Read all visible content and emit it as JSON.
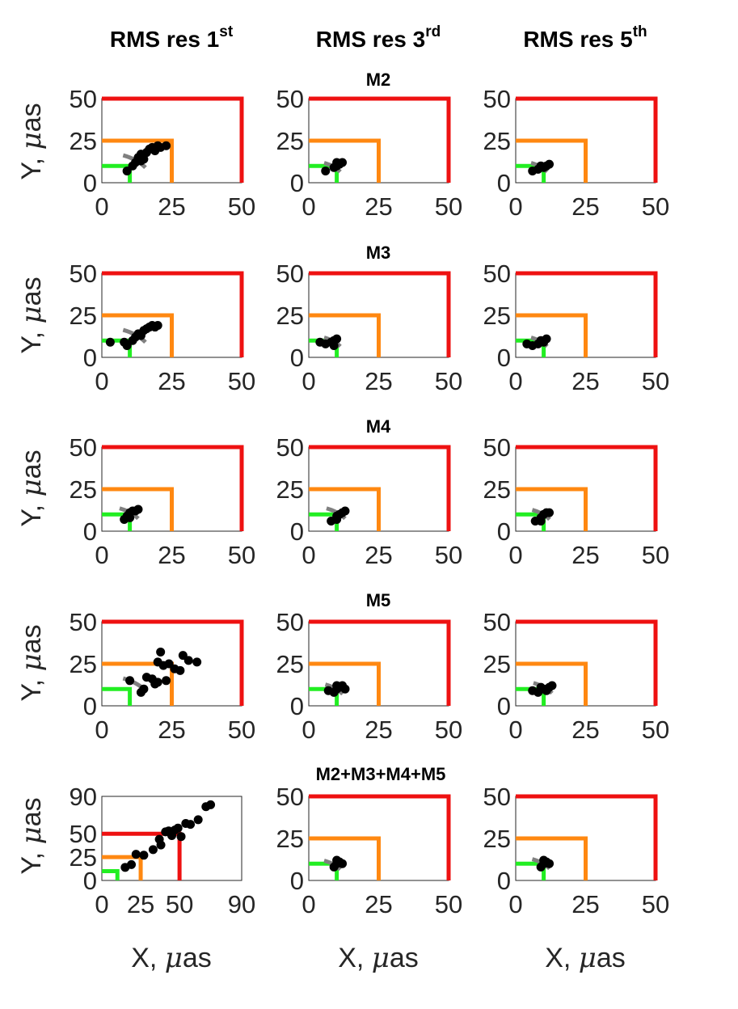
{
  "column_titles": [
    {
      "base": "RMS res 1",
      "sup": "st"
    },
    {
      "base": "RMS res 3",
      "sup": "rd"
    },
    {
      "base": "RMS res 5",
      "sup": "th"
    }
  ],
  "row_titles": [
    "M2",
    "M3",
    "M4",
    "M5",
    "M2+M3+M4+M5"
  ],
  "y_label": {
    "prefix": "Y, ",
    "mu": "μ",
    "suffix": "as"
  },
  "x_label": {
    "prefix": "X, ",
    "mu": "μ",
    "suffix": "as"
  },
  "colors": {
    "red": "#ee1111",
    "orange": "#ff8811",
    "green": "#22ee22",
    "points": "#000000",
    "arc": "#808080"
  },
  "chart_data": [
    {
      "type": "scatter",
      "title": "M2",
      "column": "RMS res 1st",
      "xlim": [
        0,
        50
      ],
      "ylim": [
        0,
        50
      ],
      "xticks": [
        "0",
        "25",
        "50"
      ],
      "yticks": [
        "0",
        "25",
        "50"
      ],
      "thresholds": [
        10,
        25,
        50
      ],
      "points": [
        [
          9,
          7
        ],
        [
          12,
          12
        ],
        [
          13,
          15
        ],
        [
          14,
          17
        ],
        [
          15,
          14
        ],
        [
          16,
          18
        ],
        [
          17,
          20
        ],
        [
          18,
          21
        ],
        [
          19,
          19
        ],
        [
          20,
          22
        ],
        [
          21,
          21
        ],
        [
          23,
          22
        ],
        [
          11,
          10
        ],
        [
          14,
          13
        ]
      ],
      "arc": {
        "radius": 18,
        "angles": [
          30,
          65
        ]
      }
    },
    {
      "type": "scatter",
      "title": "",
      "column": "RMS res 3rd",
      "xlim": [
        0,
        50
      ],
      "ylim": [
        0,
        50
      ],
      "xticks": [
        "0",
        "25",
        "50"
      ],
      "yticks": [
        "0",
        "25",
        "50"
      ],
      "thresholds": [
        10,
        25,
        50
      ],
      "points": [
        [
          6,
          7
        ],
        [
          9,
          9
        ],
        [
          10,
          10
        ],
        [
          11,
          11
        ],
        [
          12,
          12
        ],
        [
          10,
          12
        ]
      ],
      "arc": {
        "radius": 13,
        "angles": [
          30,
          65
        ]
      }
    },
    {
      "type": "scatter",
      "title": "",
      "column": "RMS res 5th",
      "xlim": [
        0,
        50
      ],
      "ylim": [
        0,
        50
      ],
      "xticks": [
        "0",
        "25",
        "50"
      ],
      "yticks": [
        "0",
        "25",
        "50"
      ],
      "thresholds": [
        10,
        25,
        50
      ],
      "points": [
        [
          6,
          7
        ],
        [
          8,
          8
        ],
        [
          10,
          9
        ],
        [
          11,
          10
        ],
        [
          12,
          11
        ],
        [
          9,
          10
        ]
      ],
      "arc": {
        "radius": 13,
        "angles": [
          30,
          65
        ]
      }
    },
    {
      "type": "scatter",
      "title": "M3",
      "column": "RMS res 1st",
      "xlim": [
        0,
        50
      ],
      "ylim": [
        0,
        50
      ],
      "xticks": [
        "0",
        "25",
        "50"
      ],
      "yticks": [
        "0",
        "25",
        "50"
      ],
      "thresholds": [
        10,
        25,
        50
      ],
      "points": [
        [
          3,
          9
        ],
        [
          8,
          9
        ],
        [
          9,
          7
        ],
        [
          11,
          10
        ],
        [
          12,
          12
        ],
        [
          13,
          14
        ],
        [
          14,
          13
        ],
        [
          15,
          16
        ],
        [
          16,
          17
        ],
        [
          17,
          18
        ],
        [
          18,
          19
        ],
        [
          19,
          18
        ],
        [
          20,
          19
        ]
      ],
      "arc": {
        "radius": 18,
        "angles": [
          30,
          65
        ]
      }
    },
    {
      "type": "scatter",
      "title": "",
      "column": "RMS res 3rd",
      "xlim": [
        0,
        50
      ],
      "ylim": [
        0,
        50
      ],
      "xticks": [
        "0",
        "25",
        "50"
      ],
      "yticks": [
        "0",
        "25",
        "50"
      ],
      "thresholds": [
        10,
        25,
        50
      ],
      "points": [
        [
          4,
          9
        ],
        [
          6,
          8
        ],
        [
          8,
          9
        ],
        [
          9,
          10
        ],
        [
          10,
          11
        ],
        [
          9,
          7
        ]
      ],
      "arc": {
        "radius": 13,
        "angles": [
          30,
          65
        ]
      }
    },
    {
      "type": "scatter",
      "title": "",
      "column": "RMS res 5th",
      "xlim": [
        0,
        50
      ],
      "ylim": [
        0,
        50
      ],
      "xticks": [
        "0",
        "25",
        "50"
      ],
      "yticks": [
        "0",
        "25",
        "50"
      ],
      "thresholds": [
        10,
        25,
        50
      ],
      "points": [
        [
          4,
          8
        ],
        [
          6,
          7
        ],
        [
          8,
          8
        ],
        [
          9,
          10
        ],
        [
          10,
          9
        ],
        [
          11,
          11
        ]
      ],
      "arc": {
        "radius": 13,
        "angles": [
          30,
          65
        ]
      }
    },
    {
      "type": "scatter",
      "title": "M4",
      "column": "RMS res 1st",
      "xlim": [
        0,
        50
      ],
      "ylim": [
        0,
        50
      ],
      "xticks": [
        "0",
        "25",
        "50"
      ],
      "yticks": [
        "0",
        "25",
        "50"
      ],
      "thresholds": [
        10,
        25,
        50
      ],
      "points": [
        [
          8,
          7
        ],
        [
          9,
          9
        ],
        [
          10,
          11
        ],
        [
          11,
          12
        ],
        [
          12,
          12
        ],
        [
          13,
          13
        ],
        [
          10,
          8
        ]
      ],
      "arc": {
        "radius": 15,
        "angles": [
          30,
          65
        ]
      }
    },
    {
      "type": "scatter",
      "title": "",
      "column": "RMS res 3rd",
      "xlim": [
        0,
        50
      ],
      "ylim": [
        0,
        50
      ],
      "xticks": [
        "0",
        "25",
        "50"
      ],
      "yticks": [
        "0",
        "25",
        "50"
      ],
      "thresholds": [
        10,
        25,
        50
      ],
      "points": [
        [
          8,
          6
        ],
        [
          10,
          9
        ],
        [
          11,
          10
        ],
        [
          12,
          11
        ],
        [
          13,
          12
        ],
        [
          10,
          7
        ]
      ],
      "arc": {
        "radius": 15,
        "angles": [
          30,
          65
        ]
      }
    },
    {
      "type": "scatter",
      "title": "",
      "column": "RMS res 5th",
      "xlim": [
        0,
        50
      ],
      "ylim": [
        0,
        50
      ],
      "xticks": [
        "0",
        "25",
        "50"
      ],
      "yticks": [
        "0",
        "25",
        "50"
      ],
      "thresholds": [
        10,
        25,
        50
      ],
      "points": [
        [
          7,
          6
        ],
        [
          9,
          8
        ],
        [
          10,
          10
        ],
        [
          11,
          11
        ],
        [
          12,
          11
        ],
        [
          9,
          6
        ]
      ],
      "arc": {
        "radius": 14,
        "angles": [
          30,
          65
        ]
      }
    },
    {
      "type": "scatter",
      "title": "M5",
      "column": "RMS res 1st",
      "xlim": [
        0,
        50
      ],
      "ylim": [
        0,
        50
      ],
      "xticks": [
        "0",
        "25",
        "50"
      ],
      "yticks": [
        "0",
        "25",
        "50"
      ],
      "thresholds": [
        10,
        25,
        50
      ],
      "points": [
        [
          10,
          15
        ],
        [
          14,
          8
        ],
        [
          15,
          10
        ],
        [
          16,
          17
        ],
        [
          18,
          16
        ],
        [
          19,
          13
        ],
        [
          20,
          14
        ],
        [
          20,
          26
        ],
        [
          21,
          32
        ],
        [
          22,
          24
        ],
        [
          23,
          15
        ],
        [
          24,
          25
        ],
        [
          26,
          22
        ],
        [
          28,
          21
        ],
        [
          29,
          30
        ],
        [
          31,
          27
        ],
        [
          34,
          26
        ]
      ],
      "arc": {
        "radius": 18,
        "angles": [
          30,
          65
        ]
      }
    },
    {
      "type": "scatter",
      "title": "",
      "column": "RMS res 3rd",
      "xlim": [
        0,
        50
      ],
      "ylim": [
        0,
        50
      ],
      "xticks": [
        "0",
        "25",
        "50"
      ],
      "yticks": [
        "0",
        "25",
        "50"
      ],
      "thresholds": [
        10,
        25,
        50
      ],
      "points": [
        [
          7,
          9
        ],
        [
          9,
          8
        ],
        [
          10,
          10
        ],
        [
          11,
          11
        ],
        [
          12,
          12
        ],
        [
          13,
          10
        ],
        [
          10,
          12
        ]
      ],
      "arc": {
        "radius": 14,
        "angles": [
          30,
          65
        ]
      }
    },
    {
      "type": "scatter",
      "title": "",
      "column": "RMS res 5th",
      "xlim": [
        0,
        50
      ],
      "ylim": [
        0,
        50
      ],
      "xticks": [
        "0",
        "25",
        "50"
      ],
      "yticks": [
        "0",
        "25",
        "50"
      ],
      "thresholds": [
        10,
        25,
        50
      ],
      "points": [
        [
          6,
          9
        ],
        [
          8,
          8
        ],
        [
          10,
          10
        ],
        [
          11,
          9
        ],
        [
          12,
          11
        ],
        [
          13,
          12
        ],
        [
          9,
          11
        ]
      ],
      "arc": {
        "radius": 15,
        "angles": [
          30,
          65
        ]
      }
    },
    {
      "type": "scatter",
      "title": "M2+M3+M4+M5",
      "column": "RMS res 1st",
      "xlim": [
        0,
        90
      ],
      "ylim": [
        0,
        90
      ],
      "xticks": [
        "0",
        "25",
        "50",
        "90"
      ],
      "yticks": [
        "0",
        "25",
        "50",
        "90"
      ],
      "thresholds": [
        10,
        25,
        50
      ],
      "points": [
        [
          15,
          14
        ],
        [
          19,
          17
        ],
        [
          22,
          28
        ],
        [
          27,
          27
        ],
        [
          33,
          33
        ],
        [
          37,
          44
        ],
        [
          38,
          38
        ],
        [
          41,
          52
        ],
        [
          43,
          53
        ],
        [
          45,
          48
        ],
        [
          47,
          54
        ],
        [
          49,
          56
        ],
        [
          51,
          47
        ],
        [
          54,
          61
        ],
        [
          57,
          60
        ],
        [
          62,
          65
        ],
        [
          67,
          79
        ],
        [
          70,
          81
        ]
      ],
      "arc": null
    },
    {
      "type": "scatter",
      "title": "",
      "column": "RMS res 3rd",
      "xlim": [
        0,
        50
      ],
      "ylim": [
        0,
        50
      ],
      "xticks": [
        "0",
        "25",
        "50"
      ],
      "yticks": [
        "0",
        "25",
        "50"
      ],
      "thresholds": [
        10,
        25,
        50
      ],
      "points": [
        [
          9,
          8
        ],
        [
          10,
          10
        ],
        [
          11,
          11
        ],
        [
          10,
          12
        ],
        [
          12,
          10
        ]
      ],
      "arc": {
        "radius": 13,
        "angles": [
          30,
          65
        ]
      }
    },
    {
      "type": "scatter",
      "title": "",
      "column": "RMS res 5th",
      "xlim": [
        0,
        50
      ],
      "ylim": [
        0,
        50
      ],
      "xticks": [
        "0",
        "25",
        "50"
      ],
      "yticks": [
        "0",
        "25",
        "50"
      ],
      "thresholds": [
        10,
        25,
        50
      ],
      "points": [
        [
          9,
          8
        ],
        [
          10,
          10
        ],
        [
          11,
          11
        ],
        [
          10,
          12
        ],
        [
          12,
          10
        ]
      ],
      "arc": {
        "radius": 14,
        "angles": [
          30,
          65
        ]
      }
    }
  ]
}
